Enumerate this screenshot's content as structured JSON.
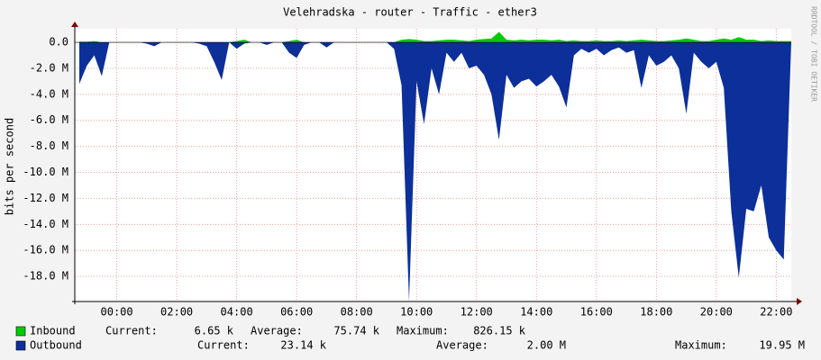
{
  "chart_data": {
    "type": "area",
    "title": "Velehradska - router - Traffic - ether3",
    "y_label": "bits per second",
    "watermark": "RRDTOOL / TOBI OETIKER",
    "xlim": [
      -1.4,
      22.5
    ],
    "xticks": [
      {
        "value": 0,
        "label": "00:00"
      },
      {
        "value": 2,
        "label": "02:00"
      },
      {
        "value": 4,
        "label": "04:00"
      },
      {
        "value": 6,
        "label": "06:00"
      },
      {
        "value": 8,
        "label": "08:00"
      },
      {
        "value": 10,
        "label": "10:00"
      },
      {
        "value": 12,
        "label": "12:00"
      },
      {
        "value": 14,
        "label": "14:00"
      },
      {
        "value": 16,
        "label": "16:00"
      },
      {
        "value": 18,
        "label": "18:00"
      },
      {
        "value": 20,
        "label": "20:00"
      },
      {
        "value": 22,
        "label": "22:00"
      }
    ],
    "ylim": [
      -19.93,
      1.04
    ],
    "yticks": [
      {
        "value": 0,
        "label": "0.0"
      },
      {
        "value": -2,
        "label": "-2.0 M"
      },
      {
        "value": -4,
        "label": "-4.0 M"
      },
      {
        "value": -6,
        "label": "-6.0 M"
      },
      {
        "value": -8,
        "label": "-8.0 M"
      },
      {
        "value": -10,
        "label": "-10.0 M"
      },
      {
        "value": -12,
        "label": "-12.0 M"
      },
      {
        "value": -14,
        "label": "-14.0 M"
      },
      {
        "value": -16,
        "label": "-16.0 M"
      },
      {
        "value": -18,
        "label": "-18.0 M"
      }
    ],
    "grid": true,
    "x": [
      -1.25,
      -1,
      -0.75,
      -0.5,
      -0.25,
      0,
      0.25,
      0.5,
      0.75,
      1,
      1.25,
      1.5,
      1.75,
      2,
      2.25,
      2.5,
      2.75,
      3,
      3.25,
      3.5,
      3.75,
      4,
      4.25,
      4.5,
      4.75,
      5,
      5.25,
      5.5,
      5.75,
      6,
      6.25,
      6.5,
      6.75,
      7,
      7.25,
      7.5,
      7.75,
      8,
      8.25,
      8.5,
      8.75,
      9,
      9.25,
      9.5,
      9.75,
      10,
      10.25,
      10.5,
      10.75,
      11,
      11.25,
      11.5,
      11.75,
      12,
      12.25,
      12.5,
      12.75,
      13,
      13.25,
      13.5,
      13.75,
      14,
      14.25,
      14.5,
      14.75,
      15,
      15.25,
      15.5,
      15.75,
      16,
      16.25,
      16.5,
      16.75,
      17,
      17.25,
      17.5,
      17.75,
      18,
      18.25,
      18.5,
      18.75,
      19,
      19.25,
      19.5,
      19.75,
      20,
      20.25,
      20.5,
      20.75,
      21,
      21.25,
      21.5,
      21.75,
      22,
      22.25,
      22.5
    ],
    "series": [
      {
        "name": "Inbound",
        "color": "#00cc00",
        "current_label": "Current:",
        "current": "6.65 k",
        "average_label": "Average:",
        "average": "75.74 k",
        "maximum_label": "Maximum:",
        "maximum": "826.15 k",
        "values": [
          0.05,
          0.05,
          0.1,
          0,
          0,
          0,
          0,
          0,
          0,
          0,
          0,
          0,
          0,
          0,
          0,
          0,
          0,
          0,
          0,
          0,
          0,
          0.1,
          0.2,
          0,
          0,
          0,
          0,
          0,
          0.1,
          0.2,
          0,
          0,
          0,
          0,
          0,
          0,
          0,
          0,
          0,
          0,
          0,
          0,
          0,
          0.2,
          0.25,
          0.2,
          0.1,
          0.1,
          0.15,
          0.2,
          0.2,
          0.15,
          0.1,
          0.2,
          0.25,
          0.3,
          0.8,
          0.2,
          0.15,
          0.2,
          0.15,
          0.2,
          0.2,
          0.15,
          0.2,
          0.1,
          0.15,
          0.1,
          0.1,
          0.15,
          0.1,
          0.1,
          0.15,
          0.1,
          0.15,
          0.2,
          0.15,
          0.1,
          0.1,
          0.15,
          0.2,
          0.3,
          0.2,
          0.1,
          0.1,
          0.2,
          0.3,
          0.2,
          0.4,
          0.2,
          0.2,
          0.1,
          0.15,
          0.1,
          0.1,
          0.1
        ]
      },
      {
        "name": "Outbound",
        "color": "#0c2f9a",
        "current_label": "Current:",
        "current": "23.14 k",
        "average_label": "Average:",
        "average": "2.00 M",
        "maximum_label": "Maximum:",
        "maximum": "19.95 M",
        "values": [
          -3.2,
          -1.8,
          -1.0,
          -2.6,
          0,
          0,
          0,
          0,
          0,
          -0.1,
          -0.3,
          0,
          0,
          0,
          0,
          0,
          -0.1,
          -0.3,
          -1.5,
          -2.9,
          0,
          -0.5,
          -0.1,
          0,
          0,
          -0.2,
          0,
          0,
          -0.8,
          -1.2,
          -0.2,
          0,
          0,
          -0.4,
          0,
          0,
          0,
          0,
          0,
          0,
          0,
          0,
          -0.5,
          -3.3,
          -19.9,
          -3.0,
          -6.3,
          -2.0,
          -4.0,
          -0.8,
          -1.5,
          -0.8,
          -2.0,
          -1.8,
          -2.5,
          -4.0,
          -7.5,
          -2.5,
          -3.5,
          -3.0,
          -2.8,
          -3.4,
          -3.0,
          -2.5,
          -3.4,
          -5.0,
          -1.0,
          -0.5,
          -0.8,
          -0.5,
          -1.0,
          -0.6,
          -0.4,
          -0.8,
          -0.6,
          -3.5,
          -1.0,
          -1.8,
          -1.5,
          -1.0,
          -2.0,
          -5.5,
          -0.8,
          -1.5,
          -2.0,
          -1.5,
          -3.5,
          -13.0,
          -18.1,
          -12.8,
          -13.0,
          -11.0,
          -15.0,
          -16.0,
          -16.7,
          0
        ]
      }
    ]
  }
}
